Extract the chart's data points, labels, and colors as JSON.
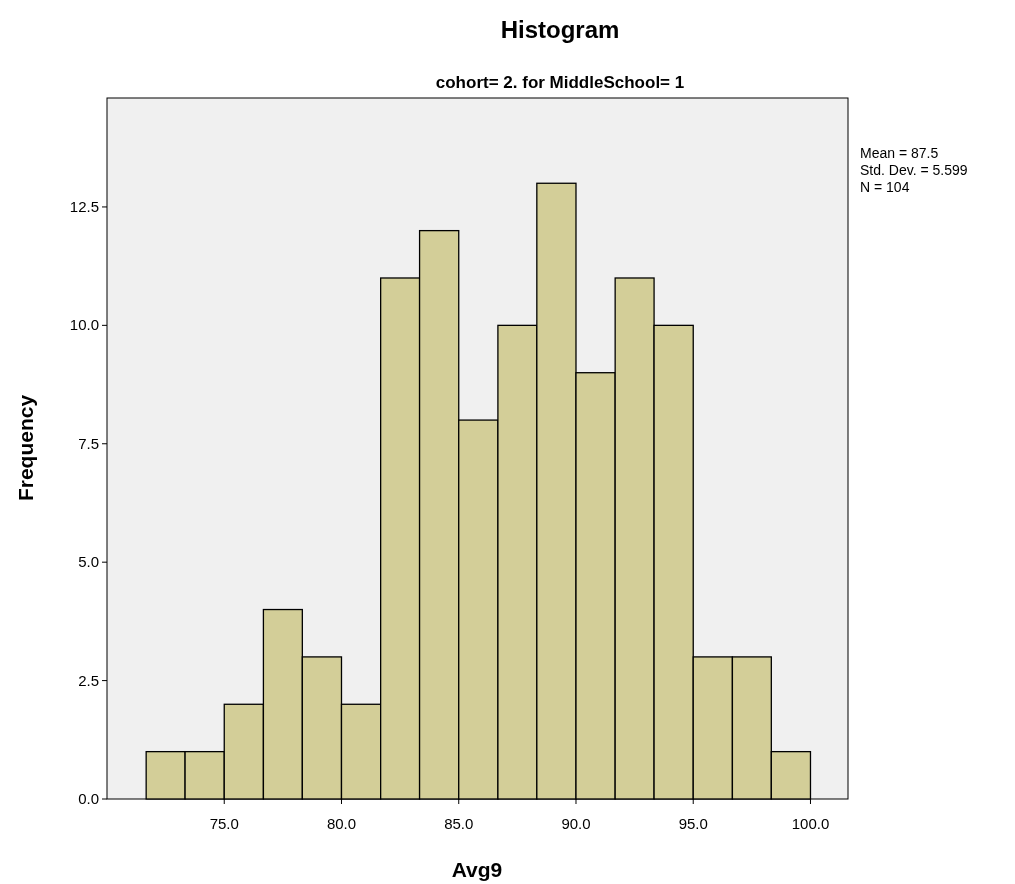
{
  "chart_data": {
    "type": "histogram",
    "title": "Histogram",
    "subtitle": "cohort= 2. for MiddleSchool= 1",
    "xlabel": "Avg9",
    "ylabel": "Frequency",
    "bins": [
      71.67,
      73.33,
      75,
      76.67,
      78.33,
      80,
      81.67,
      83.33,
      85,
      86.67,
      88.33,
      90,
      91.67,
      93.33,
      95,
      96.67,
      98.33,
      100
    ],
    "values": [
      1,
      1,
      2,
      4,
      3,
      2,
      11,
      12,
      8,
      10,
      13,
      9,
      11,
      10,
      3,
      3,
      1
    ],
    "color": "#d3ce98",
    "xlim": [
      70,
      101.6
    ],
    "xticks": [
      {
        "value": 75,
        "label": "75.0"
      },
      {
        "value": 80,
        "label": "80.0"
      },
      {
        "value": 85,
        "label": "85.0"
      },
      {
        "value": 90,
        "label": "90.0"
      },
      {
        "value": 95,
        "label": "95.0"
      },
      {
        "value": 100,
        "label": "100.0"
      }
    ],
    "ylim": [
      0,
      14.8
    ],
    "yticks": [
      {
        "value": 0,
        "label": "0.0"
      },
      {
        "value": 2.5,
        "label": "2.5"
      },
      {
        "value": 5,
        "label": "5.0"
      },
      {
        "value": 7.5,
        "label": "7.5"
      },
      {
        "value": 10,
        "label": "10.0"
      },
      {
        "value": 12.5,
        "label": "12.5"
      }
    ],
    "grid": false,
    "annotations": [
      "Mean = 87.5",
      "Std. Dev. = 5.599",
      "N = 104"
    ]
  }
}
